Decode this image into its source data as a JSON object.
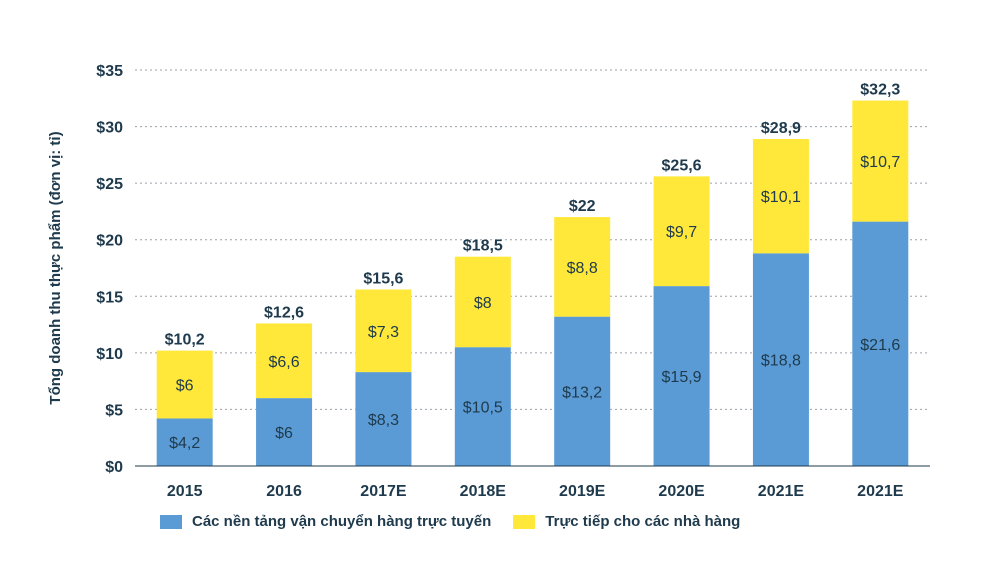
{
  "chart_data": {
    "type": "bar",
    "stacked": true,
    "title": "",
    "xlabel": "",
    "ylabel": "Tổng doanh thu thực phẩm (đơn vị: tỉ)",
    "categories": [
      "2015",
      "2016",
      "2017E",
      "2018E",
      "2019E",
      "2020E",
      "2021E",
      "2021E"
    ],
    "series": [
      {
        "name": "Các nền tảng vận chuyển hàng trực tuyến",
        "color": "#5b9bd5",
        "values": [
          4.2,
          6,
          8.3,
          10.5,
          13.2,
          15.9,
          18.8,
          21.6
        ],
        "labels": [
          "$4,2",
          "$6",
          "$8,3",
          "$10,5",
          "$13,2",
          "$15,9",
          "$18,8",
          "$21,6"
        ]
      },
      {
        "name": "Trực tiếp cho các nhà hàng",
        "color": "#ffe83a",
        "values": [
          6,
          6.6,
          7.3,
          8,
          8.8,
          9.7,
          10.1,
          10.7
        ],
        "labels": [
          "$6",
          "$6,6",
          "$7,3",
          "$8",
          "$8,8",
          "$9,7",
          "$10,1",
          "$10,7"
        ]
      }
    ],
    "totals": [
      10.2,
      12.6,
      15.6,
      18.5,
      22,
      25.6,
      28.9,
      32.3
    ],
    "total_labels": [
      "$10,2",
      "$12,6",
      "$15,6",
      "$18,5",
      "$22",
      "$25,6",
      "$28,9",
      "$32,3"
    ],
    "ylim": [
      0,
      35
    ],
    "yticks": [
      0,
      5,
      10,
      15,
      20,
      25,
      30,
      35
    ],
    "ytick_labels": [
      "$0",
      "$5",
      "$10",
      "$15",
      "$20",
      "$25",
      "$30",
      "$35"
    ],
    "grid": true,
    "legend_position": "bottom-left"
  }
}
